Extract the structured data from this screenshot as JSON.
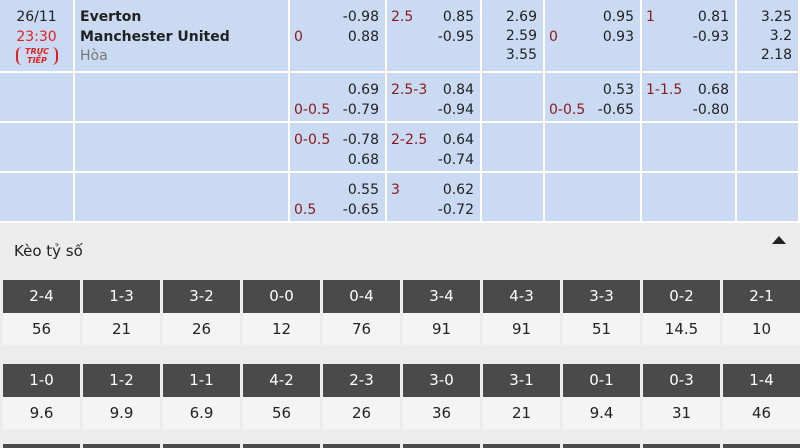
{
  "match": {
    "date": "26/11",
    "time": "23:30",
    "live": "TRỰC TIẾP",
    "home": "Everton",
    "away": "Manchester United",
    "draw": "Hòa"
  },
  "table": {
    "rows": [
      {
        "handicap": {
          "away_line": "0",
          "home": "-0.98",
          "away": "0.88"
        },
        "over_under": {
          "line": "2.5",
          "over": "0.85",
          "under": "-0.95"
        },
        "result": [
          "2.69",
          "2.59",
          "3.55"
        ],
        "h1_handicap": {
          "away_line": "0",
          "home": "0.95",
          "away": "0.93"
        },
        "h1_over_under": {
          "line": "1",
          "over": "0.81",
          "under": "-0.93"
        },
        "h1_result": [
          "3.25",
          "3.2",
          "2.18"
        ]
      },
      {
        "handicap": {
          "away_line": "0-0.5",
          "home": "0.69",
          "away": "-0.79"
        },
        "over_under": {
          "line": "2.5-3",
          "over": "0.84",
          "under": "-0.94"
        },
        "h1_handicap": {
          "away_line": "0-0.5",
          "home": "0.53",
          "away": "-0.65"
        },
        "h1_over_under": {
          "line": "1-1.5",
          "over": "0.68",
          "under": "-0.80"
        }
      },
      {
        "handicap": {
          "home_line": "0-0.5",
          "home": "-0.78",
          "away": "0.68"
        },
        "over_under": {
          "line": "2-2.5",
          "over": "0.64",
          "under": "-0.74"
        }
      },
      {
        "handicap": {
          "away_line": "0.5",
          "home": "0.55",
          "away": "-0.65"
        },
        "over_under": {
          "line": "3",
          "over": "0.62",
          "under": "-0.72"
        }
      }
    ]
  },
  "correct_score": {
    "title": "Kèo tỷ số",
    "scores": [
      {
        "score": "2-4",
        "odds": "56"
      },
      {
        "score": "1-3",
        "odds": "21"
      },
      {
        "score": "3-2",
        "odds": "26"
      },
      {
        "score": "0-0",
        "odds": "12"
      },
      {
        "score": "0-4",
        "odds": "76"
      },
      {
        "score": "3-4",
        "odds": "91"
      },
      {
        "score": "4-3",
        "odds": "91"
      },
      {
        "score": "3-3",
        "odds": "51"
      },
      {
        "score": "0-2",
        "odds": "14.5"
      },
      {
        "score": "2-1",
        "odds": "10"
      },
      {
        "score": "1-0",
        "odds": "9.6"
      },
      {
        "score": "1-2",
        "odds": "9.9"
      },
      {
        "score": "1-1",
        "odds": "6.9"
      },
      {
        "score": "4-2",
        "odds": "56"
      },
      {
        "score": "2-3",
        "odds": "26"
      },
      {
        "score": "3-0",
        "odds": "36"
      },
      {
        "score": "3-1",
        "odds": "21"
      },
      {
        "score": "0-1",
        "odds": "9.4"
      },
      {
        "score": "0-3",
        "odds": "31"
      },
      {
        "score": "1-4",
        "odds": "46"
      }
    ]
  }
}
